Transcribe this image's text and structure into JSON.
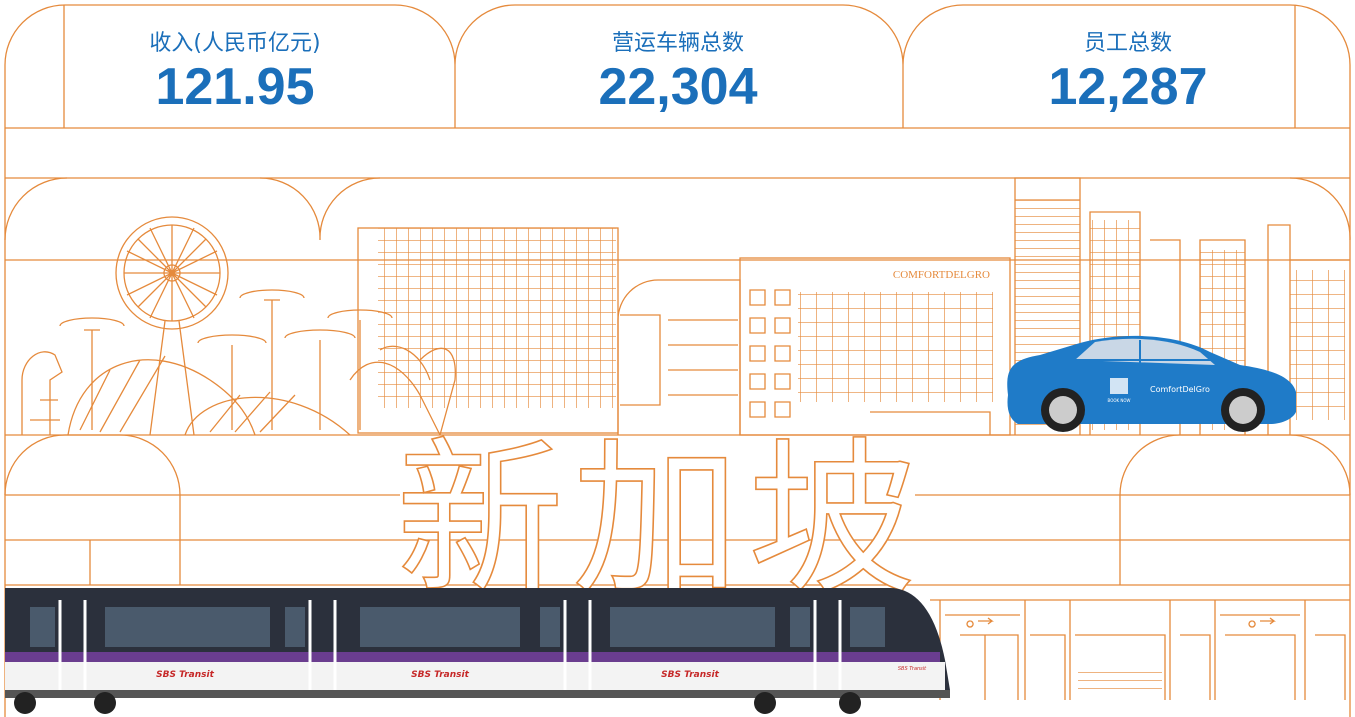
{
  "stats": [
    {
      "label": "收入(人民币亿元)",
      "value": "121.95"
    },
    {
      "label": "营运车辆总数",
      "value": "22,304"
    },
    {
      "label": "员工总数",
      "value": "12,287"
    }
  ],
  "title": "新加坡",
  "building_sign": "COMFORTDELGRO",
  "car": {
    "brand": "ComfortDelGro",
    "badge": "BOOK NOW"
  },
  "train": {
    "brand": "SBS Transit"
  }
}
